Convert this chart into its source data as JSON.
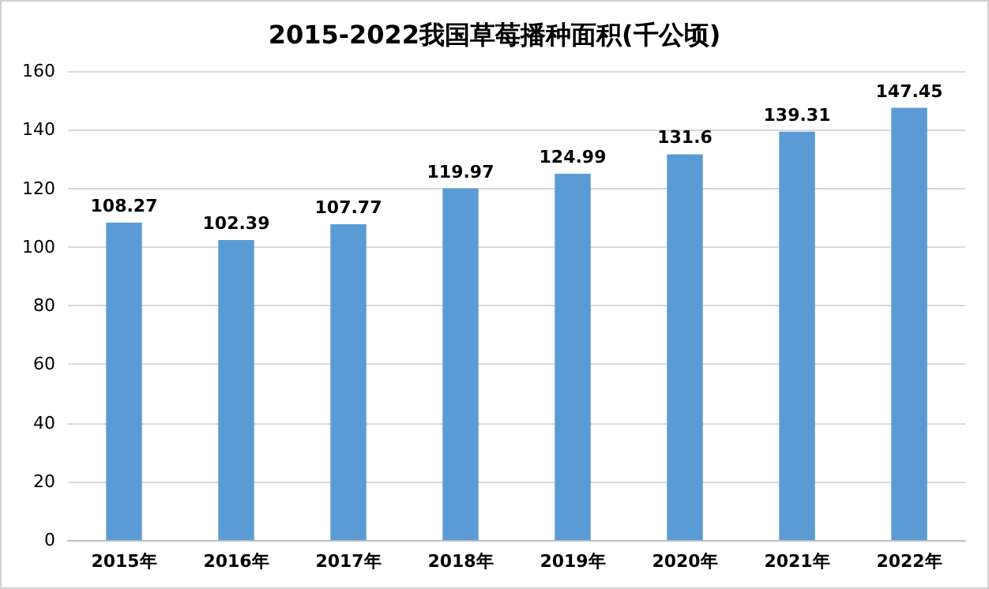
{
  "chart_data": {
    "type": "bar",
    "title": "2015-2022我国草莓播种面积(千公顷)",
    "categories": [
      "2015年",
      "2016年",
      "2017年",
      "2018年",
      "2019年",
      "2020年",
      "2021年",
      "2022年"
    ],
    "values": [
      108.27,
      102.39,
      107.77,
      119.97,
      124.99,
      131.6,
      139.31,
      147.45
    ],
    "color": "#5b9bd5",
    "ylim": [
      0,
      160
    ],
    "yticks": [
      0,
      20,
      40,
      60,
      80,
      100,
      120,
      140,
      160
    ],
    "grid": "y",
    "data_labels": true
  }
}
